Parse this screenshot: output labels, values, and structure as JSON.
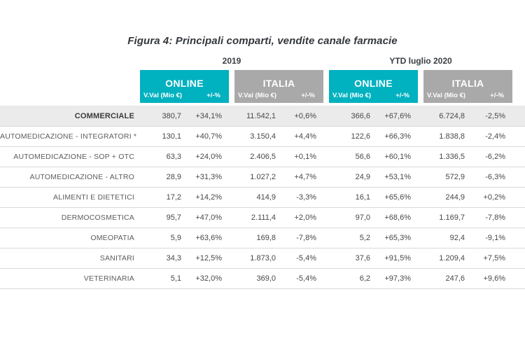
{
  "figure_title": "Figura 4: Principali comparti, vendite canale farmacie",
  "accent_colors": {
    "online_teal": "#00b1c0",
    "italia_gray": "#a9a9a9",
    "total_row_bg": "#ebebeb"
  },
  "chart_data": {
    "type": "table",
    "title": "Figura 4: Principali comparti, vendite canale farmacie",
    "year_groups": [
      "2019",
      "YTD luglio 2020"
    ],
    "column_groups": [
      {
        "year": "2019",
        "channel": "ONLINE",
        "color": "#00b1c0"
      },
      {
        "year": "2019",
        "channel": "ITALIA",
        "color": "#a9a9a9"
      },
      {
        "year": "YTD luglio 2020",
        "channel": "ONLINE",
        "color": "#00b1c0"
      },
      {
        "year": "YTD luglio 2020",
        "channel": "ITALIA",
        "color": "#a9a9a9"
      }
    ],
    "sub_columns": [
      "V.Val (Mio €)",
      "+/-%"
    ],
    "rows": [
      {
        "label": "COMMERCIALE",
        "bold": true,
        "values": [
          "380,7",
          "+34,1%",
          "11.542,1",
          "+0,6%",
          "366,6",
          "+67,6%",
          "6.724,8",
          "-2,5%"
        ]
      },
      {
        "label": "AUTOMEDICAZIONE - INTEGRATORI *",
        "bold": false,
        "values": [
          "130,1",
          "+40,7%",
          "3.150,4",
          "+4,4%",
          "122,6",
          "+66,3%",
          "1.838,8",
          "-2,4%"
        ]
      },
      {
        "label": "AUTOMEDICAZIONE - SOP + OTC",
        "bold": false,
        "values": [
          "63,3",
          "+24,0%",
          "2.406,5",
          "+0,1%",
          "56,6",
          "+60,1%",
          "1.336,5",
          "-6,2%"
        ]
      },
      {
        "label": "AUTOMEDICAZIONE - ALTRO",
        "bold": false,
        "values": [
          "28,9",
          "+31,3%",
          "1.027,2",
          "+4,7%",
          "24,9",
          "+53,1%",
          "572,9",
          "-6,3%"
        ]
      },
      {
        "label": "ALIMENTI E DIETETICI",
        "bold": false,
        "values": [
          "17,2",
          "+14,2%",
          "414,9",
          "-3,3%",
          "16,1",
          "+65,6%",
          "244,9",
          "+0,2%"
        ]
      },
      {
        "label": "DERMOCOSMETICA",
        "bold": false,
        "values": [
          "95,7",
          "+47,0%",
          "2.111,4",
          "+2,0%",
          "97,0",
          "+68,6%",
          "1.169,7",
          "-7,8%"
        ]
      },
      {
        "label": "OMEOPATIA",
        "bold": false,
        "values": [
          "5,9",
          "+63,6%",
          "169,8",
          "-7,8%",
          "5,2",
          "+65,3%",
          "92,4",
          "-9,1%"
        ]
      },
      {
        "label": "SANITARI",
        "bold": false,
        "values": [
          "34,3",
          "+12,5%",
          "1.873,0",
          "-5,4%",
          "37,6",
          "+91,5%",
          "1.209,4",
          "+7,5%"
        ]
      },
      {
        "label": "VETERINARIA",
        "bold": false,
        "values": [
          "5,1",
          "+32,0%",
          "369,0",
          "-5,4%",
          "6,2",
          "+97,3%",
          "247,6",
          "+9,6%"
        ]
      }
    ]
  }
}
